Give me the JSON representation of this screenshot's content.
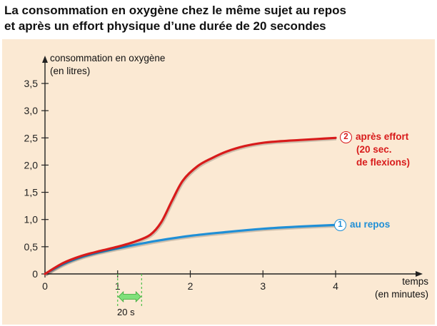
{
  "title_lines": [
    "La consommation en oxygène chez le même sujet au repos",
    "et après un effort physique d’une durée de 20 secondes"
  ],
  "colors": {
    "background": "#fbe9d3",
    "effort": "#d81b1b",
    "repos": "#1f8fd6",
    "effort_window": "#7fe07a"
  },
  "chart_data": {
    "type": "line",
    "ylabel_lines": [
      "consommation en oxygène",
      "(en litres)"
    ],
    "xlabel_lines": [
      "temps",
      "(en minutes)"
    ],
    "xlim": [
      0,
      4
    ],
    "ylim": [
      0,
      3.5
    ],
    "x_ticks": [
      "0",
      "1",
      "2",
      "3",
      "4"
    ],
    "y_ticks": [
      "0",
      "0,5",
      "1,0",
      "1,5",
      "2,0",
      "2,5",
      "3,0",
      "3,5"
    ],
    "grid": false,
    "series": [
      {
        "marker": "2",
        "label_lines": [
          "après effort",
          "(20 sec.",
          "de flexions)"
        ],
        "x": [
          0,
          0.25,
          0.5,
          0.75,
          1.0,
          1.25,
          1.45,
          1.6,
          1.75,
          1.9,
          2.1,
          2.3,
          2.5,
          2.75,
          3.0,
          3.25,
          3.5,
          3.75,
          4.0
        ],
        "y": [
          0,
          0.2,
          0.33,
          0.42,
          0.5,
          0.6,
          0.72,
          0.95,
          1.35,
          1.72,
          1.98,
          2.13,
          2.25,
          2.35,
          2.41,
          2.44,
          2.46,
          2.48,
          2.5
        ]
      },
      {
        "marker": "1",
        "label_lines": [
          "au repos"
        ],
        "x": [
          0,
          0.25,
          0.5,
          0.75,
          1.0,
          1.5,
          2.0,
          2.5,
          3.0,
          3.5,
          4.0
        ],
        "y": [
          0,
          0.18,
          0.31,
          0.4,
          0.47,
          0.6,
          0.7,
          0.77,
          0.83,
          0.87,
          0.9
        ]
      }
    ],
    "effort_window": {
      "x_start": 1.0,
      "x_end": 1.33,
      "label": "20 s"
    }
  }
}
